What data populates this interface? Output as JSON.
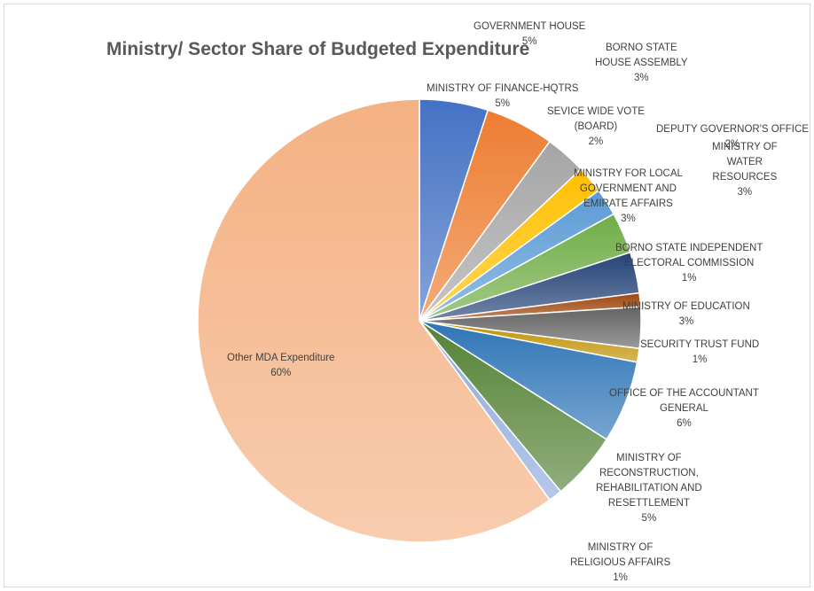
{
  "chart_data": {
    "type": "pie",
    "title": "Ministry/  Sector Share of Budgeted Expenditure",
    "slices": [
      {
        "name": "GOVERNMENT HOUSE",
        "label_lines": [
          "GOVERNMENT HOUSE"
        ],
        "value": 5,
        "pct": "5%",
        "color": "#4472c4"
      },
      {
        "name": "MINISTRY OF FINANCE-HQTRS",
        "label_lines": [
          "MINISTRY OF FINANCE-HQTRS"
        ],
        "value": 5,
        "pct": "5%",
        "color": "#ed7d31"
      },
      {
        "name": "BORNO STATE HOUSE ASSEMBLY",
        "label_lines": [
          "BORNO STATE",
          "HOUSE ASSEMBLY"
        ],
        "value": 3,
        "pct": "3%",
        "color": "#a5a5a5"
      },
      {
        "name": "SEVICE WIDE VOTE (BOARD)",
        "label_lines": [
          "SEVICE WIDE VOTE",
          "(BOARD)"
        ],
        "value": 2,
        "pct": "2%",
        "color": "#ffc000"
      },
      {
        "name": "DEPUTY GOVERNOR'S OFFICE",
        "label_lines": [
          "DEPUTY GOVERNOR'S OFFICE"
        ],
        "value": 2,
        "pct": "2%",
        "color": "#5b9bd5"
      },
      {
        "name": "MINISTRY FOR LOCAL GOVERNMENT AND EMIRATE AFFAIRS",
        "label_lines": [
          "MINISTRY FOR LOCAL",
          "GOVERNMENT AND",
          "EMIRATE  AFFAIRS"
        ],
        "value": 3,
        "pct": "3%",
        "color": "#70ad47"
      },
      {
        "name": "MINISTRY OF WATER RESOURCES",
        "label_lines": [
          "MINISTRY OF",
          "WATER",
          "RESOURCES"
        ],
        "value": 3,
        "pct": "3%",
        "color": "#264478"
      },
      {
        "name": "BORNO STATE INDEPENDENT ELECTORAL COMMISSION",
        "label_lines": [
          "BORNO STATE INDEPENDENT",
          "ELECTORAL COMMISSION"
        ],
        "value": 1,
        "pct": "1%",
        "color": "#9e480e"
      },
      {
        "name": "MINISTRY OF EDUCATION",
        "label_lines": [
          "MINISTRY OF EDUCATION"
        ],
        "value": 3,
        "pct": "3%",
        "color": "#636363"
      },
      {
        "name": "SECURITY TRUST FUND",
        "label_lines": [
          "SECURITY TRUST FUND"
        ],
        "value": 1,
        "pct": "1%",
        "color": "#bf9000"
      },
      {
        "name": "OFFICE OF THE ACCOUNTANT GENERAL",
        "label_lines": [
          "OFFICE OF THE ACCOUNTANT",
          "GENERAL"
        ],
        "value": 6,
        "pct": "6%",
        "color": "#2e75b6"
      },
      {
        "name": "MINISTRY OF RECONSTRUCTION, REHABILITATION AND RESETTLEMENT",
        "label_lines": [
          "MINISTRY OF",
          "RECONSTRUCTION,",
          "REHABILITATION AND",
          "RESETTLEMENT"
        ],
        "value": 5,
        "pct": "5%",
        "color": "#548235"
      },
      {
        "name": "MINISTRY OF RELIGIOUS AFFAIRS",
        "label_lines": [
          "MINISTRY OF",
          "RELIGIOUS AFFAIRS"
        ],
        "value": 1,
        "pct": "1%",
        "color": "#8faadc"
      },
      {
        "name": "Other MDA Expenditure",
        "label_lines": [
          "Other MDA Expenditure"
        ],
        "value": 60,
        "pct": "60%",
        "color": "#f4b183"
      }
    ]
  }
}
